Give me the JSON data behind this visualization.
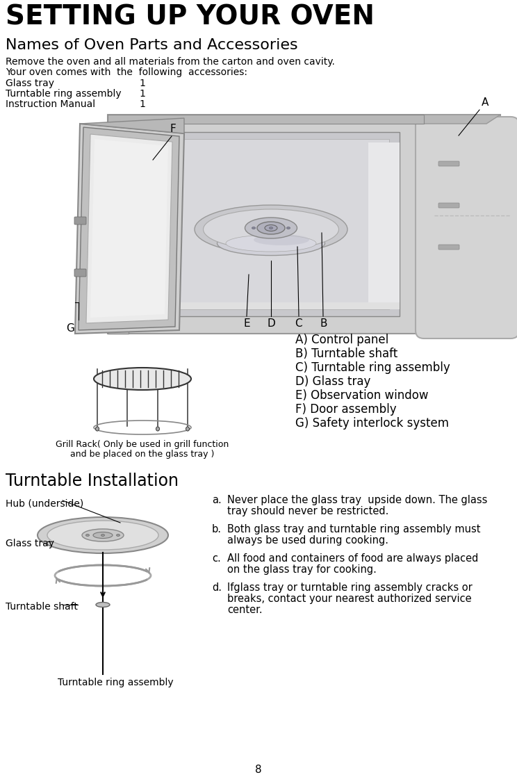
{
  "title": "SETTING UP YOUR OVEN",
  "subtitle": "Names of Oven Parts and Accessories",
  "intro_line1": "Remove the oven and all materials from the carton and oven cavity.",
  "intro_line2": "Your oven comes with  the  following  accessories:",
  "accessories": [
    [
      "Glass tray",
      "1"
    ],
    [
      "Turntable ring assembly",
      "1"
    ],
    [
      "Instruction Manual",
      "1"
    ]
  ],
  "parts_list": [
    "A) Control panel",
    "B) Turntable shaft",
    "C) Turntable ring assembly",
    "D) Glass tray",
    "E) Observation window",
    "F) Door assembly",
    "G) Safety interlock system"
  ],
  "grill_rack_caption_line1": "Grill Rack( Only be used in grill function",
  "grill_rack_caption_line2": "and be placed on the glass tray )",
  "turntable_title": "Turntable Installation",
  "hub_label": "Hub (underside)",
  "glass_tray_label": "Glass tray",
  "shaft_label": "Turntable shaft",
  "ring_label": "Turntable ring assembly",
  "inst_a": "a.  Never place the glass tray  upside down. The glass",
  "inst_a2": "    tray should never be restricted.",
  "inst_b": "b.  Both glass tray and turntable ring assembly must",
  "inst_b2": "    always be used during cooking.",
  "inst_c": "c.  All food and containers of food are always placed",
  "inst_c2": "    on the glass tray for cooking.",
  "inst_d": "d.  Ifglass tray or turntable ring assembly cracks or",
  "inst_d2": "    breaks, contact your nearest authorized service",
  "inst_d3": "    center.",
  "page_number": "8",
  "bg_color": "#ffffff",
  "text_color": "#000000"
}
